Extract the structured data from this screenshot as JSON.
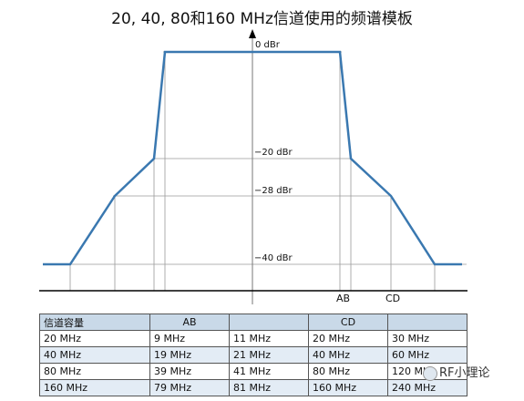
{
  "title": "20, 40, 80和160 MHz信道使用的频谱模板",
  "levels": [
    {
      "text": "0 dBr",
      "value": 0
    },
    {
      "text": "−20 dBr",
      "value": -20
    },
    {
      "text": "−28 dBr",
      "value": -28
    },
    {
      "text": "−40 dBr",
      "value": -40
    }
  ],
  "x_markers": {
    "ab": "AB",
    "cd": "CD"
  },
  "table": {
    "headers": [
      "信道容量",
      "AB",
      "",
      "CD",
      ""
    ],
    "rows": [
      [
        "20 MHz",
        "9 MHz",
        "11 MHz",
        "20 MHz",
        "30 MHz"
      ],
      [
        "40 MHz",
        "19 MHz",
        "21 MHz",
        "40 MHz",
        "60 MHz"
      ],
      [
        "80 MHz",
        "39 MHz",
        "41 MHz",
        "80 MHz",
        "120 MHz"
      ],
      [
        "160 MHz",
        "79 MHz",
        "81 MHz",
        "160 MHz",
        "240 MHz"
      ]
    ]
  },
  "watermark": "RF小理论",
  "colors": {
    "mask_line": "#3a78b0",
    "grid": "#9a9a9a",
    "axis": "#000000",
    "table_header": "#c9d9e8",
    "table_alt": "#e3ecf5"
  }
}
